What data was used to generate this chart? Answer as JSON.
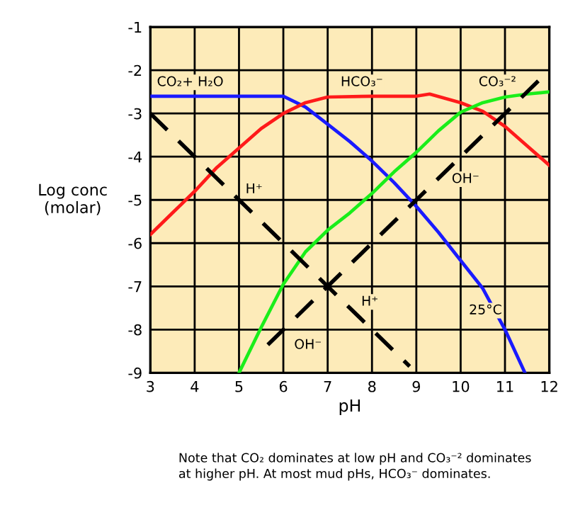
{
  "chart_data": {
    "type": "line",
    "xlabel": "pH",
    "ylabel": "Log conc\n(molar)",
    "xlim": [
      3,
      12
    ],
    "xticks": [
      3,
      4,
      5,
      6,
      7,
      8,
      9,
      10,
      11,
      12
    ],
    "ylim": [
      -9,
      -1
    ],
    "yticks": [
      -9,
      -8,
      -7,
      -6,
      -5,
      -4,
      -3,
      -2,
      -1
    ],
    "grid": true,
    "legend": false,
    "marker": "none",
    "series": [
      {
        "color": "#1a1aff",
        "line_style": "solid",
        "x": [
          3,
          6,
          6.5,
          7,
          7.5,
          8,
          8.5,
          9,
          9.5,
          10,
          10.5,
          11,
          11.45
        ],
        "values": [
          -2.6,
          -2.6,
          -2.85,
          -3.25,
          -3.65,
          -4.1,
          -4.6,
          -5.15,
          -5.75,
          -6.4,
          -7.05,
          -8.0,
          -9.0
        ]
      },
      {
        "color": "#ff1a1a",
        "line_style": "solid",
        "x": [
          3,
          3.5,
          4,
          4.5,
          5,
          5.5,
          6,
          6.5,
          7,
          8,
          9,
          9.3,
          10,
          10.5,
          11,
          11.5,
          12
        ],
        "values": [
          -5.8,
          -5.3,
          -4.8,
          -4.25,
          -3.8,
          -3.35,
          -3.0,
          -2.75,
          -2.62,
          -2.6,
          -2.6,
          -2.55,
          -2.75,
          -2.95,
          -3.3,
          -3.75,
          -4.2
        ]
      },
      {
        "color": "#1aee1a",
        "line_style": "solid",
        "x": [
          5,
          5.5,
          6,
          6.5,
          7,
          7.5,
          8,
          8.5,
          9,
          9.5,
          10,
          10.5,
          11,
          11.5,
          12
        ],
        "values": [
          -9.0,
          -7.95,
          -6.95,
          -6.2,
          -5.7,
          -5.3,
          -4.85,
          -4.35,
          -3.9,
          -3.4,
          -2.97,
          -2.75,
          -2.62,
          -2.55,
          -2.5
        ]
      },
      {
        "color": "#000000",
        "line_style": "dashed",
        "x": [
          3,
          8.85
        ],
        "values": [
          -3,
          -8.85
        ]
      },
      {
        "color": "#000000",
        "line_style": "dashed",
        "x": [
          5.65,
          12
        ],
        "values": [
          -8.35,
          -2
        ]
      }
    ],
    "annotations": [
      "CO₂+ H₂O",
      "HCO₃⁻",
      "CO₃⁻²",
      "H⁺",
      "OH⁻",
      "H⁺",
      "OH⁻",
      "25°C",
      "Note that CO₂ dominates at low pH and CO₃⁻² dominates\nat higher pH. At most mud pHs, HCO₃⁻ dominates."
    ]
  }
}
